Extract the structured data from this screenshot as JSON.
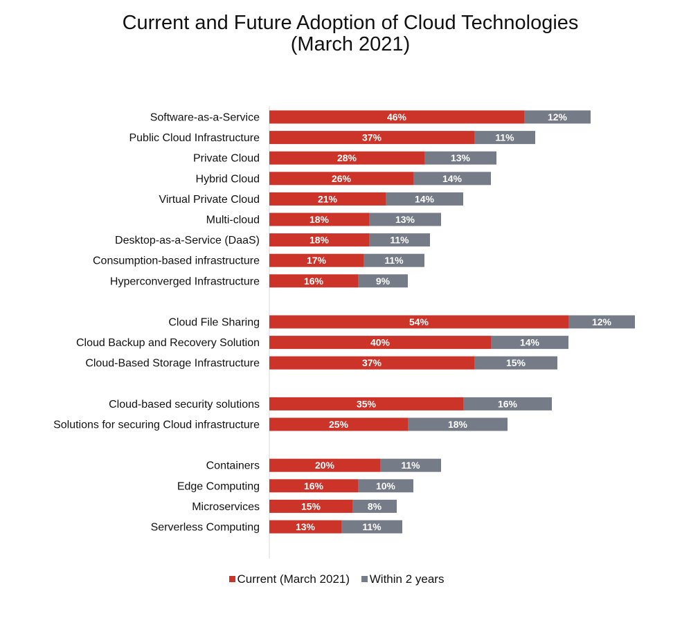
{
  "chart_data": {
    "type": "bar",
    "orientation": "horizontal",
    "stacked": true,
    "title": "Current and Future Adoption of Cloud Technologies",
    "subtitle": "(March 2021)",
    "categories": [
      "Software-as-a-Service",
      "Public Cloud Infrastructure",
      "Private Cloud",
      "Hybrid Cloud",
      "Virtual Private Cloud",
      "Multi-cloud",
      "Desktop-as-a-Service (DaaS)",
      "Consumption-based infrastructure",
      "Hyperconverged Infrastructure",
      "Cloud File Sharing",
      "Cloud Backup and Recovery Solution",
      "Cloud-Based Storage Infrastructure",
      "Cloud-based security solutions",
      "Solutions for securing Cloud infrastructure",
      "Containers",
      "Edge Computing",
      "Microservices",
      "Serverless Computing"
    ],
    "groups": [
      9,
      3,
      2,
      4
    ],
    "series": [
      {
        "name": "Current (March 2021)",
        "color": "#cc3329",
        "values": [
          46,
          37,
          28,
          26,
          21,
          18,
          18,
          17,
          16,
          54,
          40,
          37,
          35,
          25,
          20,
          16,
          15,
          13
        ]
      },
      {
        "name": "Within 2 years",
        "color": "#767b88",
        "values": [
          12,
          11,
          13,
          14,
          14,
          13,
          11,
          11,
          9,
          12,
          14,
          15,
          16,
          18,
          11,
          10,
          8,
          11
        ]
      }
    ],
    "value_suffix": "%",
    "xlim": [
      0,
      66
    ],
    "legend": "bottom-center"
  }
}
